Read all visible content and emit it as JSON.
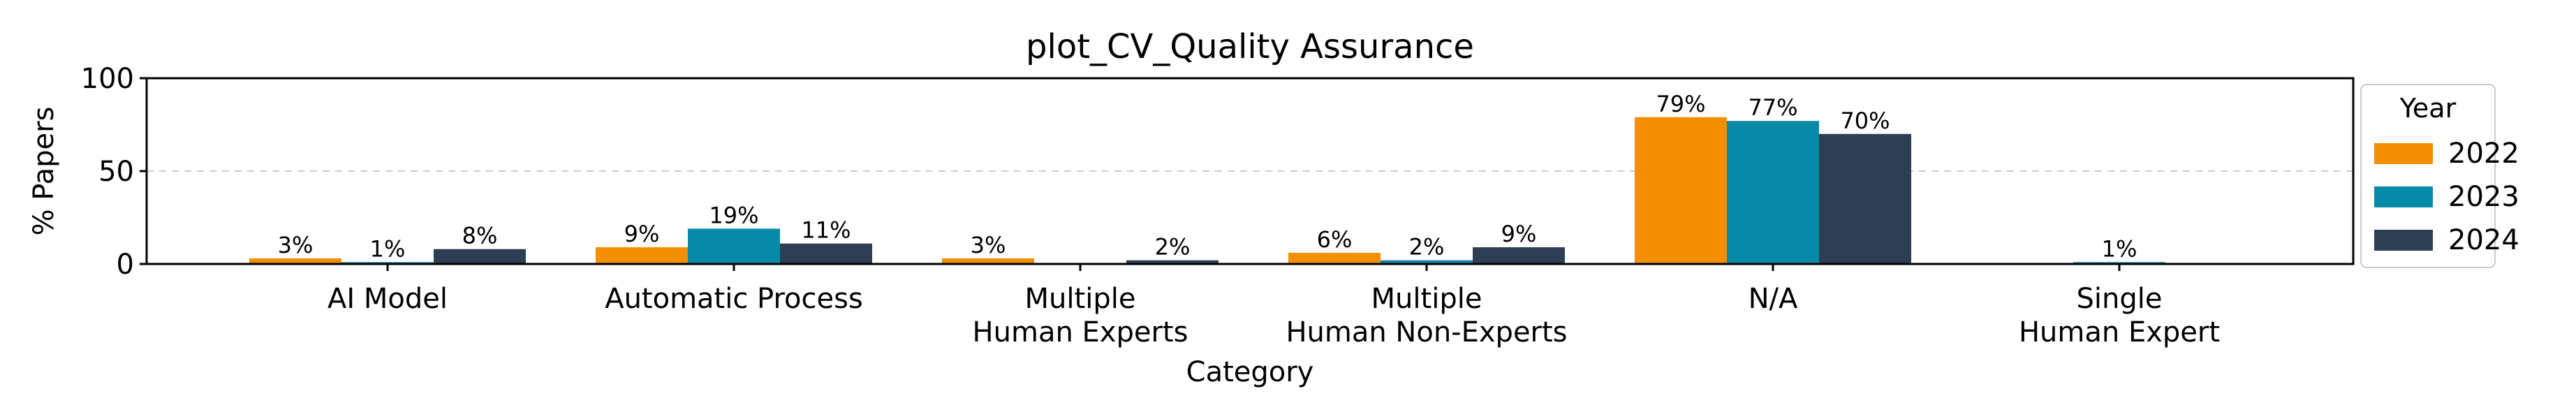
{
  "chart_data": {
    "type": "bar",
    "title": "plot_CV_Quality Assurance",
    "xlabel": "Category",
    "ylabel": "% Papers",
    "ylim": [
      0,
      100
    ],
    "yticks": [
      "0",
      "50",
      "100"
    ],
    "grid": "horizontal dashed at 50",
    "categories": [
      [
        "AI Model"
      ],
      [
        "Automatic Process"
      ],
      [
        "Multiple",
        "Human Experts"
      ],
      [
        "Multiple",
        "Human Non-Experts"
      ],
      [
        "N/A"
      ],
      [
        "Single",
        "Human Expert"
      ]
    ],
    "legend": {
      "title": "Year",
      "placement": "right, outside"
    },
    "series": [
      {
        "name": "2022",
        "color": "#F28E00",
        "values": [
          3,
          9,
          3,
          6,
          79,
          0
        ],
        "labels": [
          "3%",
          "9%",
          "3%",
          "6%",
          "79%",
          ""
        ]
      },
      {
        "name": "2023",
        "color": "#068AA8",
        "values": [
          1,
          19,
          0,
          2,
          77,
          1
        ],
        "labels": [
          "1%",
          "19%",
          "",
          "2%",
          "77%",
          "1%"
        ]
      },
      {
        "name": "2024",
        "color": "#2E3E55",
        "values": [
          8,
          11,
          2,
          9,
          70,
          0
        ],
        "labels": [
          "8%",
          "11%",
          "2%",
          "9%",
          "70%",
          ""
        ]
      }
    ]
  }
}
